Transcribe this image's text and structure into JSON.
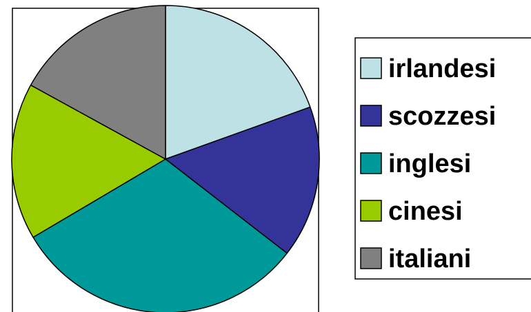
{
  "chart_data": {
    "type": "pie",
    "title": "",
    "legend_position": "right",
    "categories": [
      "irlandesi",
      "scozzesi",
      "inglesi",
      "cinesi",
      "italiani"
    ],
    "values": [
      19.5,
      16.0,
      31.0,
      16.5,
      17.0
    ],
    "colors": [
      "#BEE1E6",
      "#333399",
      "#009999",
      "#99CC00",
      "#808080"
    ],
    "start_angle": "12 o'clock",
    "direction": "clockwise"
  }
}
